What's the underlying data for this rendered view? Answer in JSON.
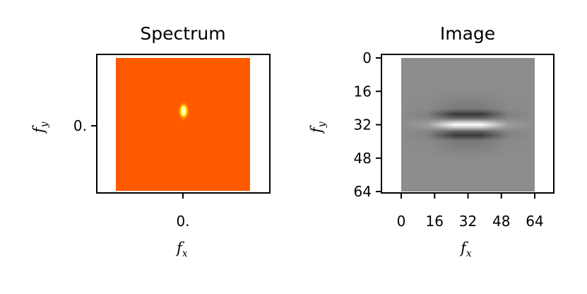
{
  "chart_data": [
    {
      "type": "heatmap",
      "title": "Spectrum",
      "xlabel": "f",
      "xlabel_subscript": "x",
      "ylabel": "f",
      "ylabel_subscript": "y",
      "x_ticks": [
        "0."
      ],
      "y_ticks": [
        "0."
      ],
      "colormap": "autumn",
      "background_color": "#ff5a00",
      "peak_color": "#ffff66",
      "peak": {
        "fx": 0.0,
        "fy": 0.1
      },
      "grid": false
    },
    {
      "type": "heatmap",
      "title": "Image",
      "xlabel": "f",
      "xlabel_subscript": "x",
      "ylabel": "f",
      "ylabel_subscript": "y",
      "x_ticks": [
        "0",
        "16",
        "32",
        "48",
        "64"
      ],
      "y_ticks": [
        "0",
        "16",
        "32",
        "48",
        "64"
      ],
      "xlim": [
        0,
        64
      ],
      "ylim": [
        64,
        0
      ],
      "colormap": "gray",
      "background_color": "#8c8c8c",
      "pattern": "horizontal gabor-like stripes centered at (32, 32)",
      "grid": false
    }
  ]
}
